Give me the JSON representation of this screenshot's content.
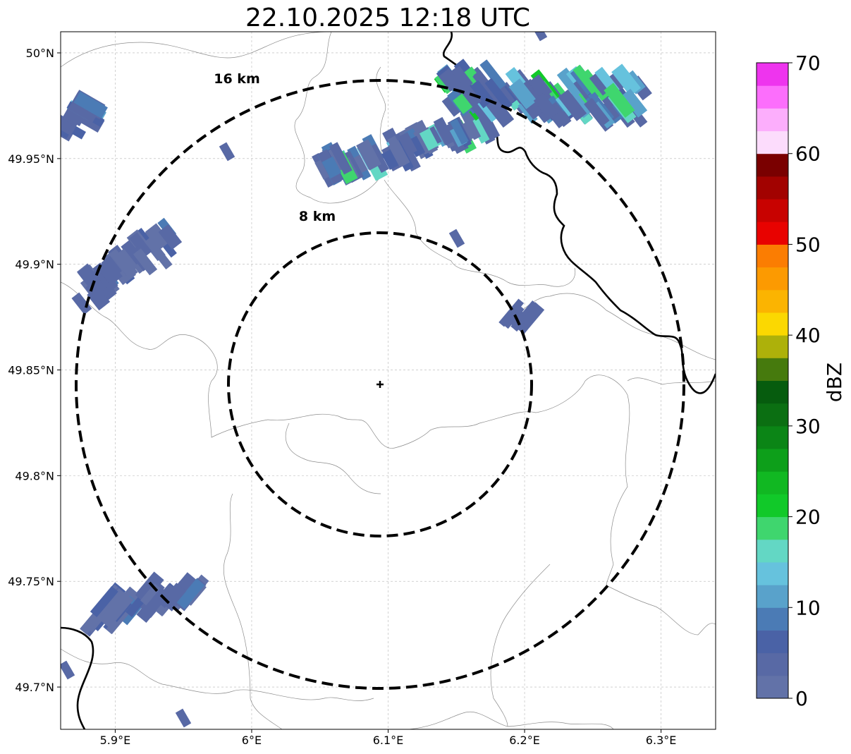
{
  "title": "22.10.2025 12:18 UTC",
  "map": {
    "lon_range": [
      5.86,
      6.34
    ],
    "lat_range": [
      49.68,
      50.01
    ],
    "radar_center": {
      "lon": 6.095,
      "lat": 49.843
    },
    "gridlines": true,
    "x_ticks": [
      {
        "value": 5.9,
        "label": "5.9°E"
      },
      {
        "value": 6.0,
        "label": "6°E"
      },
      {
        "value": 6.1,
        "label": "6.1°E"
      },
      {
        "value": 6.2,
        "label": "6.2°E"
      },
      {
        "value": 6.3,
        "label": "6.3°E"
      }
    ],
    "y_ticks": [
      {
        "value": 50.0,
        "label": "50°N"
      },
      {
        "value": 49.95,
        "label": "49.95°N"
      },
      {
        "value": 49.9,
        "label": "49.9°N"
      },
      {
        "value": 49.85,
        "label": "49.85°N"
      },
      {
        "value": 49.8,
        "label": "49.8°N"
      },
      {
        "value": 49.75,
        "label": "49.75°N"
      },
      {
        "value": 49.7,
        "label": "49.7°N"
      }
    ],
    "range_rings": [
      {
        "radius_km": 8,
        "label": "8 km"
      },
      {
        "radius_km": 16,
        "label": "16 km"
      }
    ],
    "echo_clusters": [
      {
        "name": "north-band",
        "dbz": [
          2,
          18
        ]
      },
      {
        "name": "northeast-band",
        "dbz": [
          3,
          22
        ]
      },
      {
        "name": "west-cluster",
        "dbz": [
          2,
          12
        ]
      },
      {
        "name": "southwest-cluster",
        "dbz": [
          2,
          10
        ]
      },
      {
        "name": "northwest-edge",
        "dbz": [
          3,
          14
        ]
      },
      {
        "name": "east-cell",
        "dbz": [
          3,
          6
        ]
      }
    ]
  },
  "colorbar": {
    "label": "dBZ",
    "min": 0,
    "max": 70,
    "ticks": [
      "0",
      "10",
      "20",
      "30",
      "40",
      "50",
      "60",
      "70"
    ],
    "colors": [
      "#6272a8",
      "#5869a5",
      "#4a62a6",
      "#4b7bb5",
      "#59a2cb",
      "#66c2dd",
      "#63d7c4",
      "#3fd66e",
      "#11c929",
      "#11b822",
      "#0d9f1a",
      "#0b8516",
      "#0b6f12",
      "#065c0e",
      "#467a0d",
      "#adb10a",
      "#fbd801",
      "#fbb401",
      "#fc9a01",
      "#fb7d02",
      "#e80200",
      "#c80200",
      "#a20200",
      "#7a0000",
      "#fcdcfc",
      "#fcaefc",
      "#fc6efc",
      "#ee34ee"
    ]
  }
}
